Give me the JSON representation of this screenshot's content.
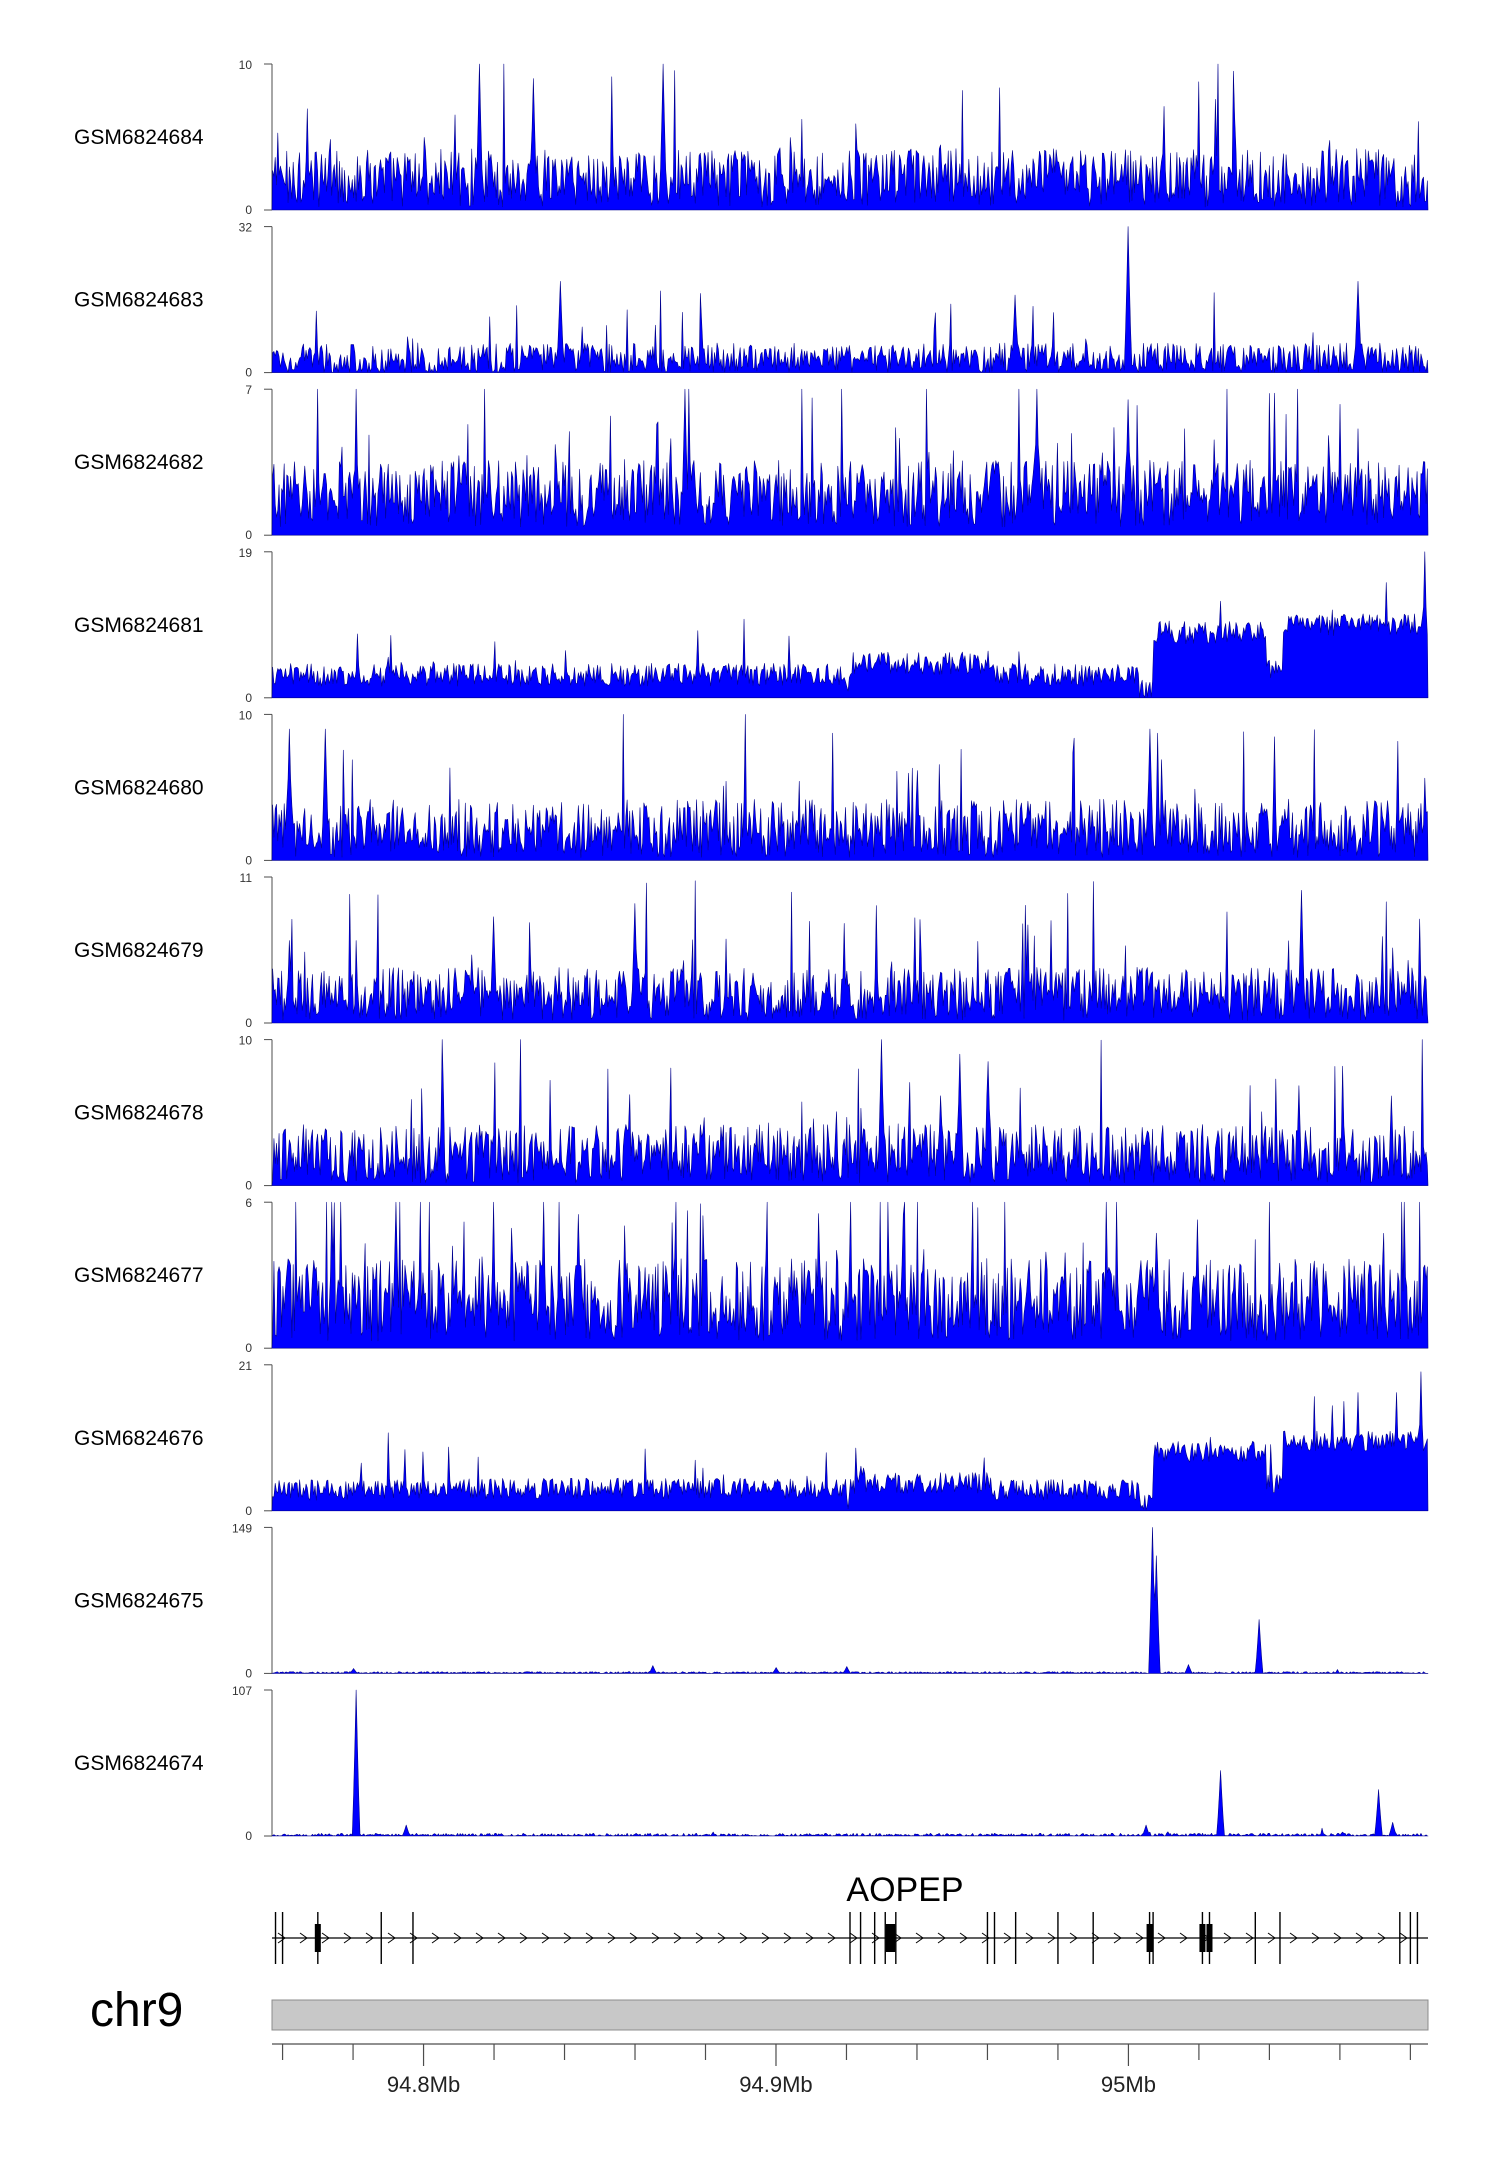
{
  "chart_data": {
    "type": "area",
    "title": "",
    "xlabel": "",
    "ylabel": "",
    "legend": "none",
    "grid": false,
    "x_range_mb": [
      94.757,
      95.085
    ],
    "colors": {
      "track_fill": "#0000ff",
      "track_line": "#00008b",
      "axis": "#4d4d4d",
      "ideogram": "#c8c8c8",
      "gene": "#000000"
    },
    "series": [
      {
        "name": "GSM6824684",
        "ymax": 10,
        "ymax_label": "10",
        "ymin_label": "0",
        "base": 2.2,
        "noise": 2.0,
        "spike_rate": 0.05,
        "spike_top": 0.8,
        "segments": [],
        "peaks": [
          [
            94.816,
            10
          ],
          [
            94.831,
            9
          ],
          [
            94.868,
            10
          ]
        ]
      },
      {
        "name": "GSM6824683",
        "ymax": 32,
        "ymax_label": "32",
        "ymin_label": "0",
        "base": 3.0,
        "noise": 3.5,
        "spike_rate": 0.03,
        "spike_top": 0.45,
        "segments": [],
        "peaks": [
          [
            94.839,
            20
          ],
          [
            95.0,
            32
          ],
          [
            94.968,
            17
          ],
          [
            95.065,
            20
          ]
        ]
      },
      {
        "name": "GSM6824682",
        "ymax": 7,
        "ymax_label": "7",
        "ymin_label": "0",
        "base": 2.0,
        "noise": 1.6,
        "spike_rate": 0.06,
        "spike_top": 0.85,
        "segments": [],
        "peaks": [
          [
            94.874,
            7
          ],
          [
            94.974,
            7
          ],
          [
            95.0,
            6.5
          ]
        ]
      },
      {
        "name": "GSM6824681",
        "ymax": 19,
        "ymax_label": "19",
        "ymin_label": "0",
        "base": 2.0,
        "noise": 1.5,
        "spike_rate": 0.03,
        "spike_top": 0.35,
        "segments": [
          [
            94.757,
            94.78,
            3.0
          ],
          [
            94.78,
            94.92,
            3.0
          ],
          [
            94.92,
            94.921,
            1.0
          ],
          [
            94.921,
            94.961,
            4.5
          ],
          [
            94.961,
            95.003,
            3.0
          ],
          [
            95.003,
            95.007,
            0.8
          ],
          [
            95.007,
            95.039,
            8.5
          ],
          [
            95.039,
            95.044,
            4.0
          ],
          [
            95.044,
            95.085,
            9.5
          ]
        ],
        "peaks": [
          [
            95.084,
            19
          ],
          [
            95.073,
            15
          ]
        ]
      },
      {
        "name": "GSM6824680",
        "ymax": 10,
        "ymax_label": "10",
        "ymin_label": "0",
        "base": 2.2,
        "noise": 2.0,
        "spike_rate": 0.05,
        "spike_top": 0.75,
        "segments": [],
        "peaks": [
          [
            94.762,
            9
          ],
          [
            94.772,
            9
          ],
          [
            95.006,
            9
          ]
        ]
      },
      {
        "name": "GSM6824679",
        "ymax": 11,
        "ymax_label": "11",
        "ymin_label": "0",
        "base": 2.2,
        "noise": 2.0,
        "spike_rate": 0.05,
        "spike_top": 0.7,
        "segments": [],
        "peaks": [
          [
            95.049,
            10
          ],
          [
            94.82,
            8
          ],
          [
            94.86,
            9
          ]
        ]
      },
      {
        "name": "GSM6824678",
        "ymax": 10,
        "ymax_label": "10",
        "ymin_label": "0",
        "base": 2.2,
        "noise": 2.0,
        "spike_rate": 0.05,
        "spike_top": 0.75,
        "segments": [],
        "peaks": [
          [
            94.93,
            10
          ],
          [
            94.952,
            9
          ],
          [
            94.96,
            8.5
          ]
        ]
      },
      {
        "name": "GSM6824677",
        "ymax": 6,
        "ymax_label": "6",
        "ymin_label": "0",
        "base": 2.0,
        "noise": 1.7,
        "spike_rate": 0.07,
        "spike_top": 0.9,
        "segments": [],
        "peaks": [
          [
            94.792,
            6
          ],
          [
            94.844,
            5.5
          ],
          [
            94.936,
            5.5
          ]
        ]
      },
      {
        "name": "GSM6824676",
        "ymax": 21,
        "ymax_label": "21",
        "ymin_label": "0",
        "base": 2.0,
        "noise": 1.5,
        "spike_rate": 0.03,
        "spike_top": 0.35,
        "segments": [
          [
            94.757,
            94.78,
            3.0
          ],
          [
            94.78,
            94.92,
            3.2
          ],
          [
            94.92,
            94.921,
            1.0
          ],
          [
            94.921,
            94.961,
            4.0
          ],
          [
            94.961,
            95.003,
            3.0
          ],
          [
            95.003,
            95.007,
            0.8
          ],
          [
            95.007,
            95.039,
            8.5
          ],
          [
            95.039,
            95.044,
            4.0
          ],
          [
            95.044,
            95.085,
            10.0
          ]
        ],
        "peaks": [
          [
            95.083,
            20
          ],
          [
            95.076,
            17
          ],
          [
            95.065,
            17
          ]
        ]
      },
      {
        "name": "GSM6824675",
        "ymax": 149,
        "ymax_label": "149",
        "ymin_label": "0",
        "base": 0.8,
        "noise": 1.0,
        "spike_rate": 0.005,
        "spike_top": 0.03,
        "segments": [],
        "peaks": [
          [
            95.007,
            149
          ],
          [
            95.008,
            120
          ],
          [
            95.037,
            55
          ],
          [
            94.865,
            8
          ],
          [
            94.92,
            7
          ],
          [
            94.9,
            6
          ],
          [
            95.017,
            9
          ],
          [
            94.78,
            5
          ]
        ]
      },
      {
        "name": "GSM6824674",
        "ymax": 107,
        "ymax_label": "107",
        "ymin_label": "0",
        "base": 0.8,
        "noise": 1.2,
        "spike_rate": 0.005,
        "spike_top": 0.04,
        "segments": [],
        "peaks": [
          [
            94.781,
            107
          ],
          [
            95.026,
            48
          ],
          [
            95.071,
            34
          ],
          [
            94.795,
            8
          ],
          [
            95.075,
            10
          ],
          [
            95.005,
            8
          ]
        ]
      }
    ],
    "gene": {
      "label": "AOPEP",
      "start": 94.757,
      "end": 95.085,
      "strand": "+",
      "exons": [
        94.758,
        94.76,
        94.77,
        94.788,
        94.797,
        94.921,
        94.924,
        94.928,
        94.931,
        94.934,
        94.96,
        94.962,
        94.968,
        94.98,
        94.99,
        95.006,
        95.007,
        95.021,
        95.023,
        95.036,
        95.043,
        95.077,
        95.08,
        95.082
      ],
      "thick_exons": [
        94.77,
        94.932,
        94.933,
        95.006,
        95.021,
        95.023
      ]
    },
    "ideogram": {
      "label": "chr9"
    },
    "x_ticks": [
      {
        "value": 94.76,
        "label": ""
      },
      {
        "value": 94.78,
        "label": ""
      },
      {
        "value": 94.8,
        "label": "94.8Mb"
      },
      {
        "value": 94.82,
        "label": ""
      },
      {
        "value": 94.84,
        "label": ""
      },
      {
        "value": 94.86,
        "label": ""
      },
      {
        "value": 94.88,
        "label": ""
      },
      {
        "value": 94.9,
        "label": "94.9Mb"
      },
      {
        "value": 94.92,
        "label": ""
      },
      {
        "value": 94.94,
        "label": ""
      },
      {
        "value": 94.96,
        "label": ""
      },
      {
        "value": 94.98,
        "label": ""
      },
      {
        "value": 95.0,
        "label": "95Mb"
      },
      {
        "value": 95.02,
        "label": ""
      },
      {
        "value": 95.04,
        "label": ""
      },
      {
        "value": 95.06,
        "label": ""
      },
      {
        "value": 95.08,
        "label": ""
      }
    ]
  }
}
